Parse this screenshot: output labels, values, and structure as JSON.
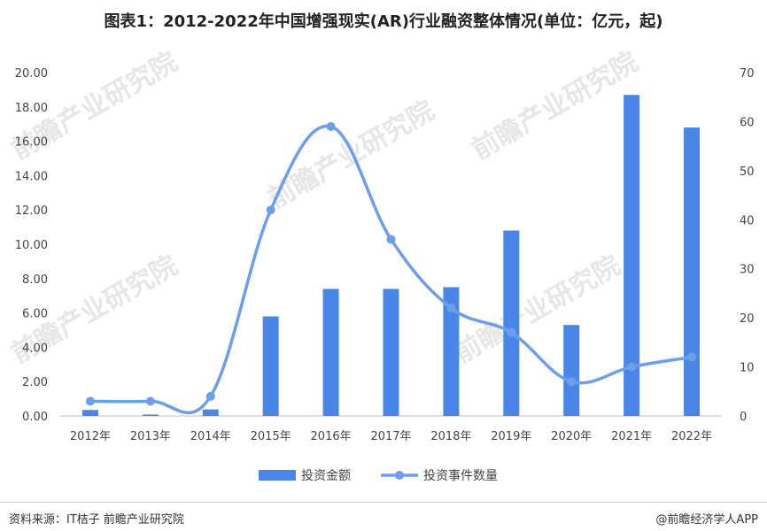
{
  "title": "图表1：2012-2022年中国增强现实(AR)行业融资整体情况(单位：亿元，起)",
  "source": "资料来源：IT桔子 前瞻产业研究院",
  "brand": "@前瞻经济学人APP",
  "watermark": "前瞻产业研究院",
  "chart_data": {
    "type": "bar",
    "categories": [
      "2012年",
      "2013年",
      "2014年",
      "2015年",
      "2016年",
      "2017年",
      "2018年",
      "2019年",
      "2020年",
      "2021年",
      "2022年"
    ],
    "series": [
      {
        "name": "投资金额",
        "type": "bar",
        "axis": "left",
        "color": "#4a86e8",
        "values": [
          0.35,
          0.08,
          0.38,
          5.8,
          7.4,
          7.4,
          7.5,
          10.8,
          5.3,
          18.7,
          16.8
        ]
      },
      {
        "name": "投资事件数量",
        "type": "line",
        "axis": "right",
        "color": "#6d9eeb",
        "values": [
          3,
          3,
          4,
          42,
          59,
          36,
          22,
          17,
          7,
          10,
          12
        ]
      }
    ],
    "y_left": {
      "min": 0,
      "max": 20,
      "step": 2,
      "ticks": [
        "0.00",
        "2.00",
        "4.00",
        "6.00",
        "8.00",
        "10.00",
        "12.00",
        "14.00",
        "16.00",
        "18.00",
        "20.00"
      ]
    },
    "y_right": {
      "min": 0,
      "max": 70,
      "step": 10,
      "ticks": [
        "0",
        "10",
        "20",
        "30",
        "40",
        "50",
        "60",
        "70"
      ]
    },
    "grid": false,
    "legend": "bottom"
  }
}
